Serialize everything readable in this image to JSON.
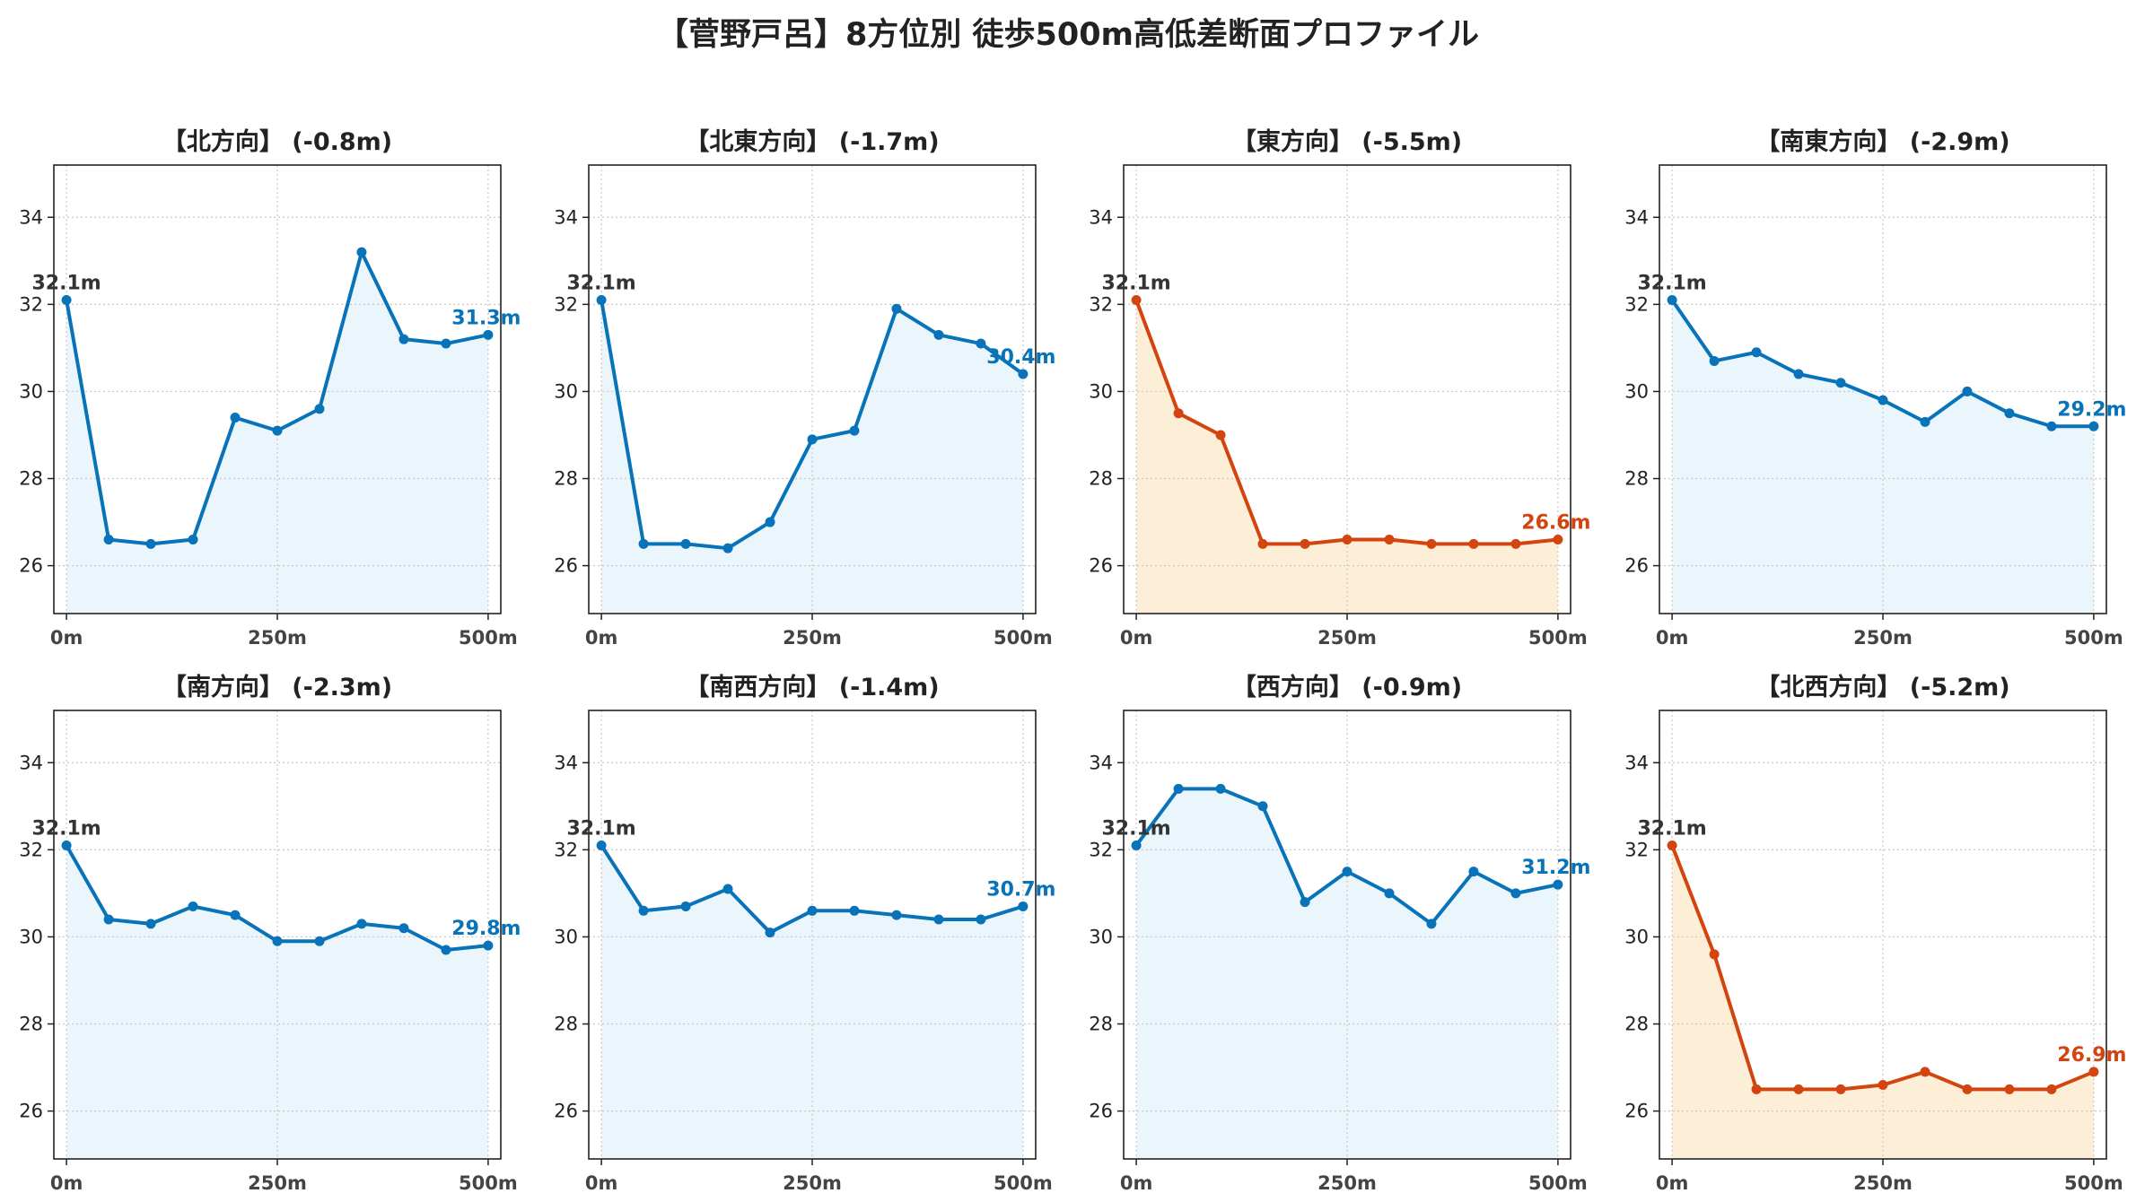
{
  "figure_title": "【菅野戸呂】8方位別 徒歩500m高低差断面プロファイル",
  "colors": {
    "normal_line": "#0873b9",
    "normal_fill": "#eaf6fb",
    "steep_line": "#d3440f",
    "steep_fill": "#fdeed8",
    "start_label": "#333333",
    "grid": "#c8c8c8"
  },
  "chart_data": [
    {
      "type": "line",
      "title": "【北方向】 (-0.8m)",
      "style": "normal",
      "x": [
        0,
        50,
        100,
        150,
        200,
        250,
        300,
        350,
        400,
        450,
        500
      ],
      "y": [
        32.1,
        26.6,
        26.5,
        26.6,
        29.4,
        29.1,
        29.6,
        33.2,
        31.2,
        31.1,
        31.3
      ],
      "start_label": "32.1m",
      "end_label": "31.3m",
      "x_ticks": [
        "0m",
        "250m",
        "500m"
      ],
      "y_ticks": [
        26,
        28,
        30,
        32,
        34
      ],
      "ylim": [
        24.9,
        35.2
      ],
      "xlim": [
        -15,
        515
      ],
      "grid": true
    },
    {
      "type": "line",
      "title": "【北東方向】 (-1.7m)",
      "style": "normal",
      "x": [
        0,
        50,
        100,
        150,
        200,
        250,
        300,
        350,
        400,
        450,
        500
      ],
      "y": [
        32.1,
        26.5,
        26.5,
        26.4,
        27.0,
        28.9,
        29.1,
        31.9,
        31.3,
        31.1,
        30.4
      ],
      "start_label": "32.1m",
      "end_label": "30.4m",
      "x_ticks": [
        "0m",
        "250m",
        "500m"
      ],
      "y_ticks": [
        26,
        28,
        30,
        32,
        34
      ],
      "ylim": [
        24.9,
        35.2
      ],
      "xlim": [
        -15,
        515
      ],
      "grid": true
    },
    {
      "type": "line",
      "title": "【東方向】 (-5.5m)",
      "style": "steep",
      "x": [
        0,
        50,
        100,
        150,
        200,
        250,
        300,
        350,
        400,
        450,
        500
      ],
      "y": [
        32.1,
        29.5,
        29.0,
        26.5,
        26.5,
        26.6,
        26.6,
        26.5,
        26.5,
        26.5,
        26.6
      ],
      "start_label": "32.1m",
      "end_label": "26.6m",
      "x_ticks": [
        "0m",
        "250m",
        "500m"
      ],
      "y_ticks": [
        26,
        28,
        30,
        32,
        34
      ],
      "ylim": [
        24.9,
        35.2
      ],
      "xlim": [
        -15,
        515
      ],
      "grid": true
    },
    {
      "type": "line",
      "title": "【南東方向】 (-2.9m)",
      "style": "normal",
      "x": [
        0,
        50,
        100,
        150,
        200,
        250,
        300,
        350,
        400,
        450,
        500
      ],
      "y": [
        32.1,
        30.7,
        30.9,
        30.4,
        30.2,
        29.8,
        29.3,
        30.0,
        29.5,
        29.2,
        29.2
      ],
      "start_label": "32.1m",
      "end_label": "29.2m",
      "x_ticks": [
        "0m",
        "250m",
        "500m"
      ],
      "y_ticks": [
        26,
        28,
        30,
        32,
        34
      ],
      "ylim": [
        24.9,
        35.2
      ],
      "xlim": [
        -15,
        515
      ],
      "grid": true
    },
    {
      "type": "line",
      "title": "【南方向】 (-2.3m)",
      "style": "normal",
      "x": [
        0,
        50,
        100,
        150,
        200,
        250,
        300,
        350,
        400,
        450,
        500
      ],
      "y": [
        32.1,
        30.4,
        30.3,
        30.7,
        30.5,
        29.9,
        29.9,
        30.3,
        30.2,
        29.7,
        29.8
      ],
      "start_label": "32.1m",
      "end_label": "29.8m",
      "x_ticks": [
        "0m",
        "250m",
        "500m"
      ],
      "y_ticks": [
        26,
        28,
        30,
        32,
        34
      ],
      "ylim": [
        24.9,
        35.2
      ],
      "xlim": [
        -15,
        515
      ],
      "grid": true
    },
    {
      "type": "line",
      "title": "【南西方向】 (-1.4m)",
      "style": "normal",
      "x": [
        0,
        50,
        100,
        150,
        200,
        250,
        300,
        350,
        400,
        450,
        500
      ],
      "y": [
        32.1,
        30.6,
        30.7,
        31.1,
        30.1,
        30.6,
        30.6,
        30.5,
        30.4,
        30.4,
        30.7
      ],
      "start_label": "32.1m",
      "end_label": "30.7m",
      "x_ticks": [
        "0m",
        "250m",
        "500m"
      ],
      "y_ticks": [
        26,
        28,
        30,
        32,
        34
      ],
      "ylim": [
        24.9,
        35.2
      ],
      "xlim": [
        -15,
        515
      ],
      "grid": true
    },
    {
      "type": "line",
      "title": "【西方向】 (-0.9m)",
      "style": "normal",
      "x": [
        0,
        50,
        100,
        150,
        200,
        250,
        300,
        350,
        400,
        450,
        500
      ],
      "y": [
        32.1,
        33.4,
        33.4,
        33.0,
        30.8,
        31.5,
        31.0,
        30.3,
        31.5,
        31.0,
        31.2
      ],
      "start_label": "32.1m",
      "end_label": "31.2m",
      "x_ticks": [
        "0m",
        "250m",
        "500m"
      ],
      "y_ticks": [
        26,
        28,
        30,
        32,
        34
      ],
      "ylim": [
        24.9,
        35.2
      ],
      "xlim": [
        -15,
        515
      ],
      "grid": true
    },
    {
      "type": "line",
      "title": "【北西方向】 (-5.2m)",
      "style": "steep",
      "x": [
        0,
        50,
        100,
        150,
        200,
        250,
        300,
        350,
        400,
        450,
        500
      ],
      "y": [
        32.1,
        29.6,
        26.5,
        26.5,
        26.5,
        26.6,
        26.9,
        26.5,
        26.5,
        26.5,
        26.9
      ],
      "start_label": "32.1m",
      "end_label": "26.9m",
      "x_ticks": [
        "0m",
        "250m",
        "500m"
      ],
      "y_ticks": [
        26,
        28,
        30,
        32,
        34
      ],
      "ylim": [
        24.9,
        35.2
      ],
      "xlim": [
        -15,
        515
      ],
      "grid": true
    }
  ]
}
